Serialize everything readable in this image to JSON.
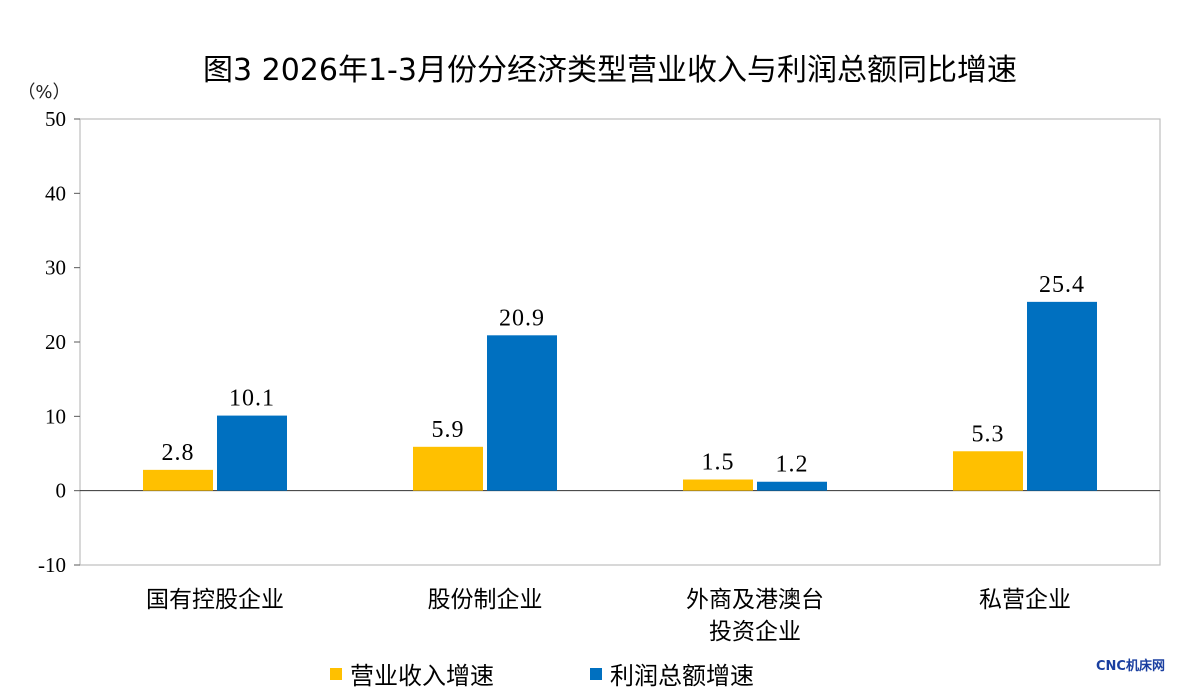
{
  "chart_data": {
    "type": "bar",
    "title": "图3 2026年1-3月份分经济类型营业收入与利润总额同比增速",
    "unit_label": "（%）",
    "categories": [
      [
        "国有控股企业"
      ],
      [
        "股份制企业"
      ],
      [
        "外商及港澳台",
        "投资企业"
      ],
      [
        "私营企业"
      ]
    ],
    "series": [
      {
        "name": "营业收入增速",
        "color": "#FFC000",
        "values": [
          2.8,
          5.9,
          1.5,
          5.3
        ],
        "labels": [
          "2.8",
          "5.9",
          "1.5",
          "5.3"
        ]
      },
      {
        "name": "利润总额增速",
        "color": "#0070C0",
        "values": [
          10.1,
          20.9,
          1.2,
          25.4
        ],
        "labels": [
          "10.1",
          "20.9",
          "1.2",
          "25.4"
        ]
      }
    ],
    "ylim": [
      -10,
      50
    ],
    "yticks": [
      "50",
      "40",
      "30",
      "20",
      "10",
      "0",
      "-10"
    ],
    "ytick_values": [
      50,
      40,
      30,
      20,
      10,
      0,
      -10
    ],
    "legend_position": "bottom",
    "grid": false
  },
  "watermark": "CNC机床网"
}
